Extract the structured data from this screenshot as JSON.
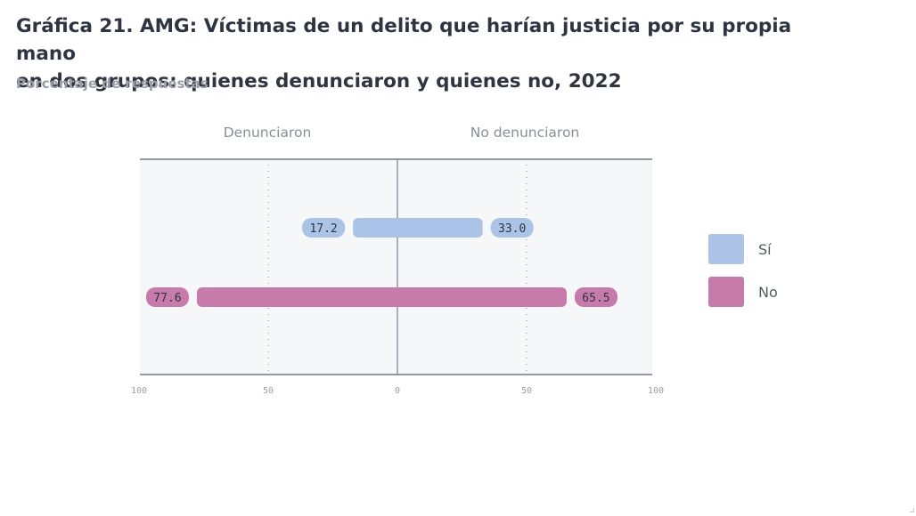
{
  "header": {
    "title_line1": "Gráfica 21. AMG: Víctimas de un delito que harían justicia por su propia mano",
    "title_line2": "en dos grupos: quienes denunciaron y quienes no, 2022",
    "subtitle": "Porcentaje de respuestas"
  },
  "chart_data": {
    "type": "bar",
    "orientation": "horizontal-diverging",
    "panels": [
      "Denunciaron",
      "No denunciaron"
    ],
    "series": [
      {
        "name": "Sí",
        "color": "#aac3e6",
        "values": [
          17.2,
          33.0
        ]
      },
      {
        "name": "No",
        "color": "#c77bab",
        "values": [
          77.6,
          65.5
        ]
      }
    ],
    "xlim": [
      -100,
      100
    ],
    "x_ticks": [
      "100",
      "50",
      "0",
      "50",
      "100"
    ],
    "grid": true,
    "legend_placement": "right"
  },
  "legend": {
    "items": [
      {
        "label": "Sí",
        "color": "#aac3e6"
      },
      {
        "label": "No",
        "color": "#c77bab"
      }
    ]
  }
}
